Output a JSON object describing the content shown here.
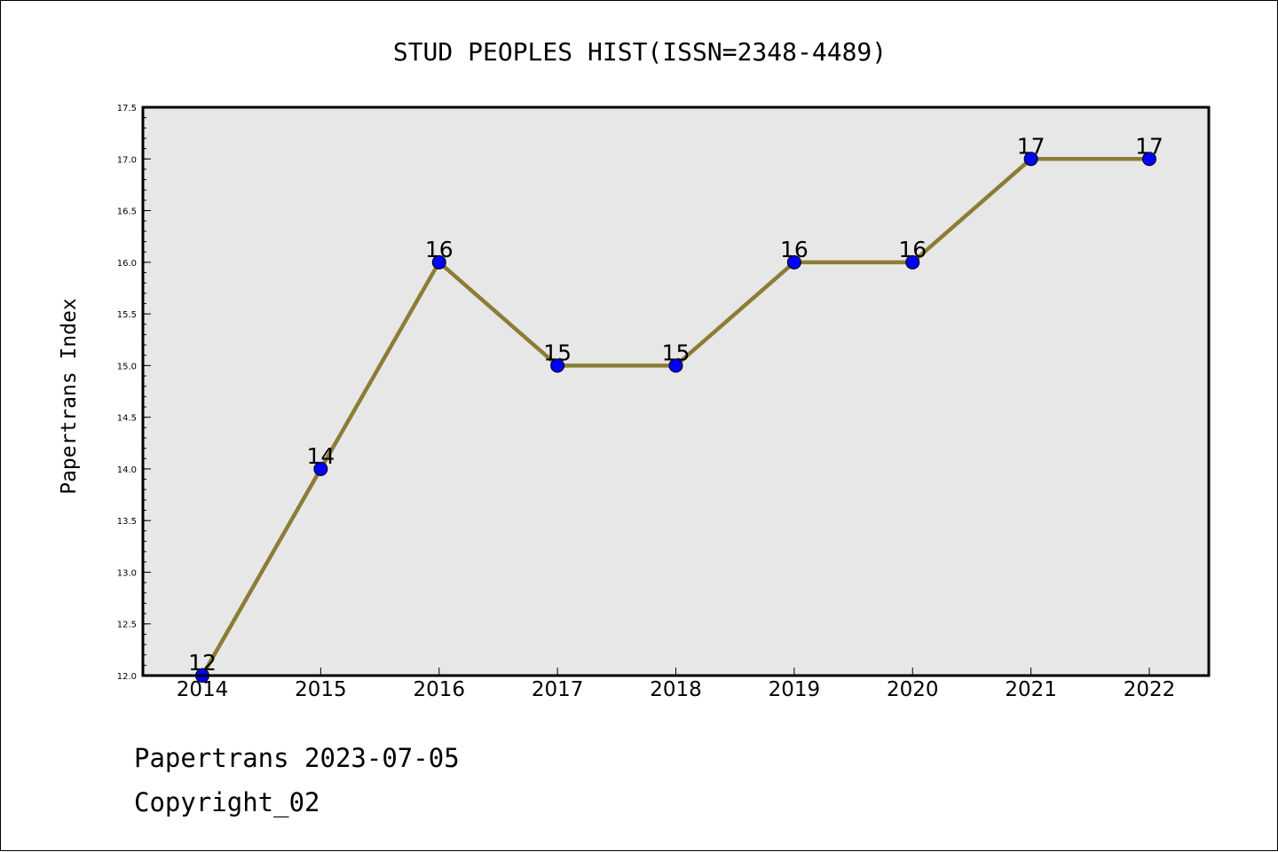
{
  "chart_data": {
    "type": "line",
    "title": "STUD PEOPLES HIST(ISSN=2348-4489)",
    "xlabel": "",
    "ylabel": "Papertrans Index",
    "categories": [
      "2014",
      "2015",
      "2016",
      "2017",
      "2018",
      "2019",
      "2020",
      "2021",
      "2022"
    ],
    "series": [
      {
        "values": [
          12,
          14,
          16,
          15,
          15,
          16,
          16,
          17,
          17
        ],
        "data_labels": [
          "12",
          "14",
          "16",
          "15",
          "15",
          "16",
          "16",
          "17",
          "17"
        ]
      }
    ],
    "ylim": [
      12.0,
      17.5
    ],
    "yticks": [
      "12.0",
      "12.5",
      "13.0",
      "13.5",
      "14.0",
      "14.5",
      "15.0",
      "15.5",
      "16.0",
      "16.5",
      "17.0",
      "17.5"
    ],
    "grid": false,
    "legend": "none",
    "colors": {
      "line": "#8b7d35",
      "marker": "#0000ff",
      "plot_background": "#e7e7e7"
    }
  },
  "footer": {
    "line1": "Papertrans 2023-07-05",
    "line2": "Copyright_02"
  }
}
